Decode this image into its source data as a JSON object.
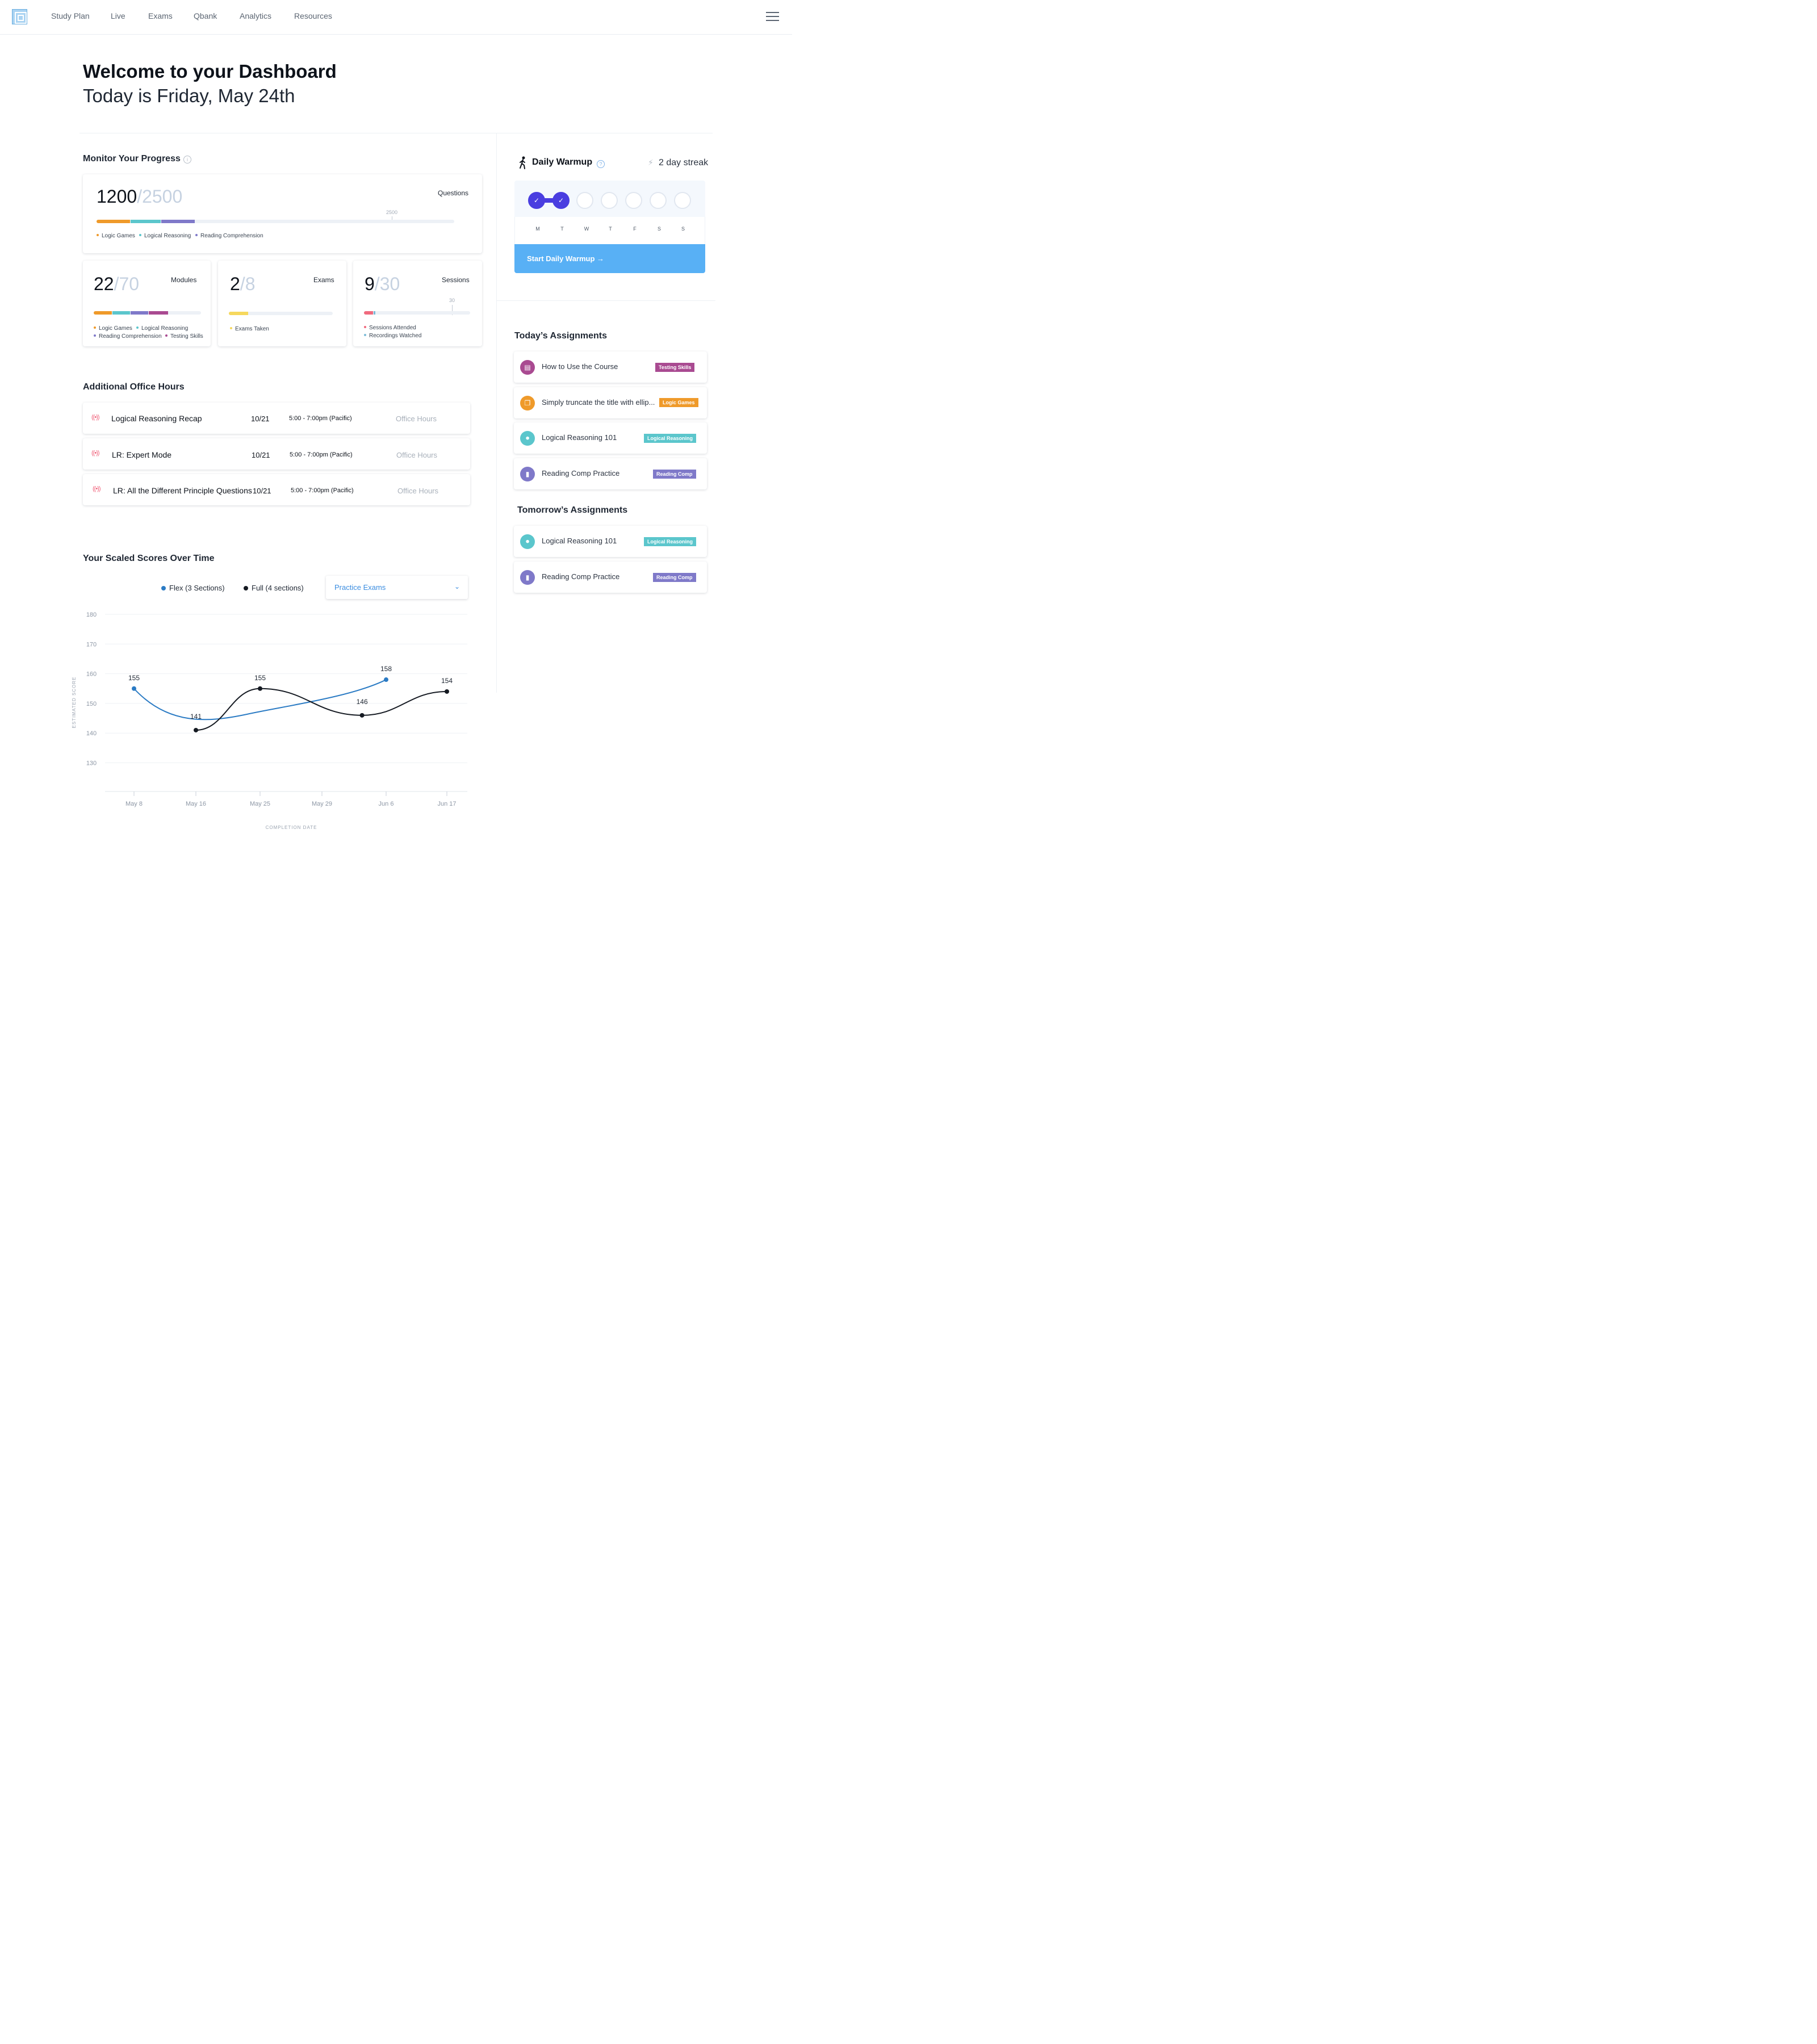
{
  "nav": {
    "items": [
      "Study Plan",
      "Live",
      "Exams",
      "Qbank",
      "Analytics",
      "Resources"
    ]
  },
  "header": {
    "title": "Welcome to your Dashboard",
    "subtitle": "Today is Friday, May 24th"
  },
  "progress": {
    "title": "Monitor Your Progress",
    "questions": {
      "value": "1200",
      "total": "/2500",
      "label": "Questions",
      "marker": "2500",
      "fractions": [
        0.095,
        0.085,
        0.095
      ],
      "legend": [
        "Logic Games",
        "Logical Reasoning",
        "Reading Comprehension"
      ]
    },
    "modules": {
      "value": "22",
      "total": "/70",
      "label": "Modules",
      "legend": [
        "Logic Games",
        "Logical Reasoning",
        "Reading Comprehension",
        "Testing Skills"
      ]
    },
    "exams": {
      "value": "2",
      "total": "/8",
      "label": "Exams",
      "legend": [
        "Exams Taken"
      ]
    },
    "sessions": {
      "value": "9",
      "total": "/30",
      "label": "Sessions",
      "marker": "30",
      "legend": [
        "Sessions Attended",
        "Recordings Watched"
      ]
    }
  },
  "colors": {
    "logic_games": "#ef9a2a",
    "logical_reasoning": "#5bc6cc",
    "reading_comprehension": "#7f79c9",
    "testing_skills": "#a94a91",
    "exams_taken": "#f6d85d",
    "sessions_attended": "#f06a7e",
    "recordings_watched": "#7dbbd8",
    "flex_series": "#2b7bc4",
    "full_series": "#151a22",
    "warmup_accent": "#4a3ee0",
    "warmup_button": "#58b0f5"
  },
  "office_hours": {
    "title": "Additional Office Hours",
    "rows": [
      {
        "title": "Logical Reasoning Recap",
        "date": "10/21",
        "time": "5:00 - 7:00pm (Pacific)",
        "type": "Office Hours"
      },
      {
        "title": "LR: Expert Mode",
        "date": "10/21",
        "time": "5:00 - 7:00pm (Pacific)",
        "type": "Office Hours"
      },
      {
        "title": "LR: All the Different Principle Questions",
        "date": "10/21",
        "time": "5:00 - 7:00pm (Pacific)",
        "type": "Office Hours"
      }
    ]
  },
  "scores": {
    "title": "Your Scaled Scores Over Time",
    "dropdown": "Practice Exams"
  },
  "chart_data": {
    "type": "line",
    "xlabel": "COMPLETION DATE",
    "ylabel": "ESTIMATED SCORE",
    "ylim": [
      125,
      185
    ],
    "yticks": [
      180,
      170,
      160,
      150,
      140,
      130
    ],
    "xticks": [
      "May 8",
      "May 16",
      "May 25",
      "May 29",
      "Jun 6",
      "Jun 17"
    ],
    "xtick_days": [
      8,
      16,
      25,
      29,
      37,
      48
    ],
    "series": [
      {
        "name": "Flex (3 Sections)",
        "points": [
          {
            "day": 8,
            "value": 155
          },
          {
            "day": 37,
            "value": 158
          }
        ]
      },
      {
        "name": "Full (4 sections)",
        "points": [
          {
            "day": 16,
            "value": 141
          },
          {
            "day": 25,
            "value": 155
          },
          {
            "day": 34,
            "value": 146
          },
          {
            "day": 48,
            "value": 154
          }
        ]
      }
    ],
    "grid": true,
    "legend": "top"
  },
  "warmup": {
    "title": "Daily Warmup",
    "streak": "2 day streak",
    "days": [
      "M",
      "T",
      "W",
      "T",
      "F",
      "S",
      "S"
    ],
    "button": "Start Daily Warmup →"
  },
  "assignments": {
    "today_title": "Today’s Assignments",
    "today": [
      {
        "title": "How to Use the Course",
        "tag": "Testing Skills",
        "icon": "book-icon"
      },
      {
        "title": "Simply truncate the title with ellip...",
        "tag": "Logic Games",
        "icon": "cube-icon"
      },
      {
        "title": "Logical Reasoning 101",
        "tag": "Logical Reasoning",
        "icon": "lightbulb-icon"
      },
      {
        "title": "Reading Comp Practice",
        "tag": "Reading Comp",
        "icon": "bookmark-icon"
      }
    ],
    "tomorrow_title": "Tomorrow’s Assignments",
    "tomorrow": [
      {
        "title": "Logical Reasoning 101",
        "tag": "Logical Reasoning",
        "icon": "lightbulb-icon"
      },
      {
        "title": "Reading Comp Practice",
        "tag": "Reading Comp",
        "icon": "bookmark-icon"
      }
    ]
  }
}
